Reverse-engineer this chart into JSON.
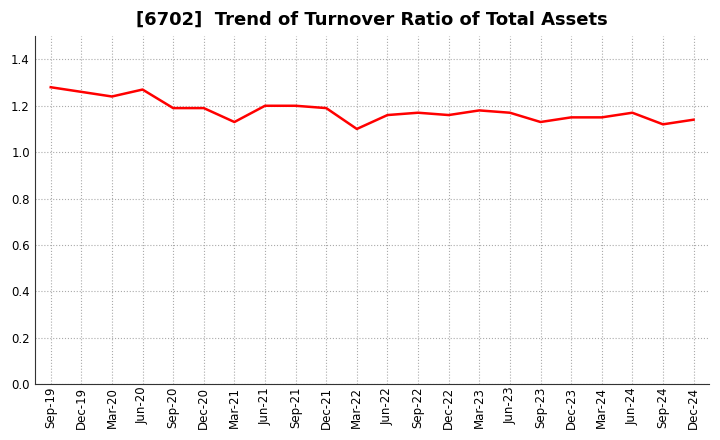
{
  "title": "[6702]  Trend of Turnover Ratio of Total Assets",
  "labels": [
    "Sep-19",
    "Dec-19",
    "Mar-20",
    "Jun-20",
    "Sep-20",
    "Dec-20",
    "Mar-21",
    "Jun-21",
    "Sep-21",
    "Dec-21",
    "Mar-22",
    "Jun-22",
    "Sep-22",
    "Dec-22",
    "Mar-23",
    "Jun-23",
    "Sep-23",
    "Dec-23",
    "Mar-24",
    "Jun-24",
    "Sep-24",
    "Dec-24"
  ],
  "values": [
    1.28,
    1.26,
    1.24,
    1.27,
    1.19,
    1.19,
    1.13,
    1.2,
    1.2,
    1.19,
    1.1,
    1.16,
    1.17,
    1.16,
    1.18,
    1.17,
    1.13,
    1.15,
    1.15,
    1.17,
    1.12,
    1.14
  ],
  "line_color": "#ff0000",
  "line_width": 1.8,
  "ylim": [
    0.0,
    1.5
  ],
  "yticks": [
    0.0,
    0.2,
    0.4,
    0.6,
    0.8,
    1.0,
    1.2,
    1.4
  ],
  "grid_color": "#aaaaaa",
  "bg_color": "#ffffff",
  "title_fontsize": 13,
  "tick_fontsize": 8.5
}
